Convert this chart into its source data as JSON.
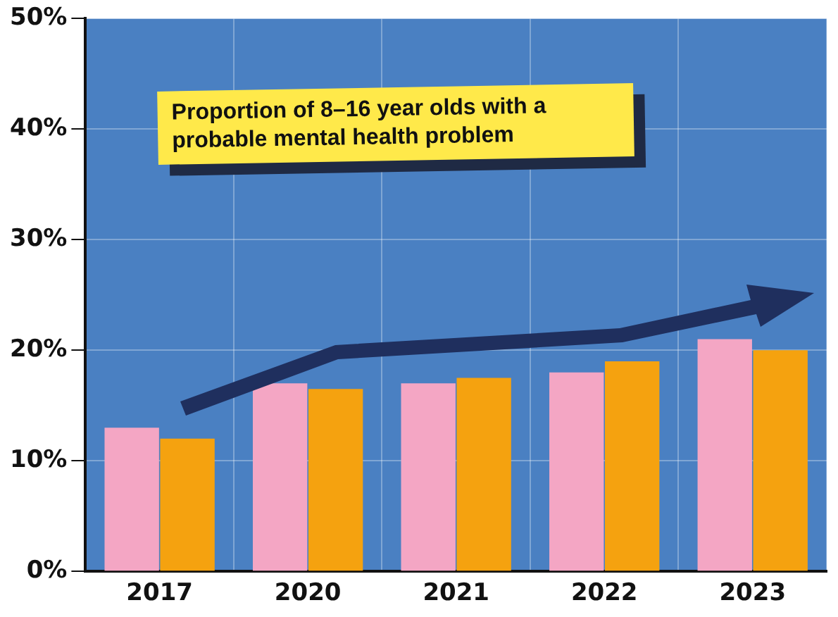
{
  "chart_data": {
    "type": "bar",
    "title": "Proportion of 8–16 year olds with a probable mental health problem",
    "categories": [
      "2017",
      "2020",
      "2021",
      "2022",
      "2023"
    ],
    "series": [
      {
        "color": "#f4a6c4",
        "values": [
          13,
          17,
          17,
          18,
          21
        ]
      },
      {
        "color": "#f5a20f",
        "values": [
          12,
          16.5,
          17.5,
          19,
          20
        ]
      }
    ],
    "ylim": [
      0,
      50
    ],
    "yticks": [
      {
        "value": 0,
        "label": "0%"
      },
      {
        "value": 10,
        "label": "10%"
      },
      {
        "value": 20,
        "label": "20%"
      },
      {
        "value": 30,
        "label": "30%"
      },
      {
        "value": 40,
        "label": "40%"
      },
      {
        "value": 50,
        "label": "50%"
      }
    ],
    "grid": true,
    "legend": false
  }
}
